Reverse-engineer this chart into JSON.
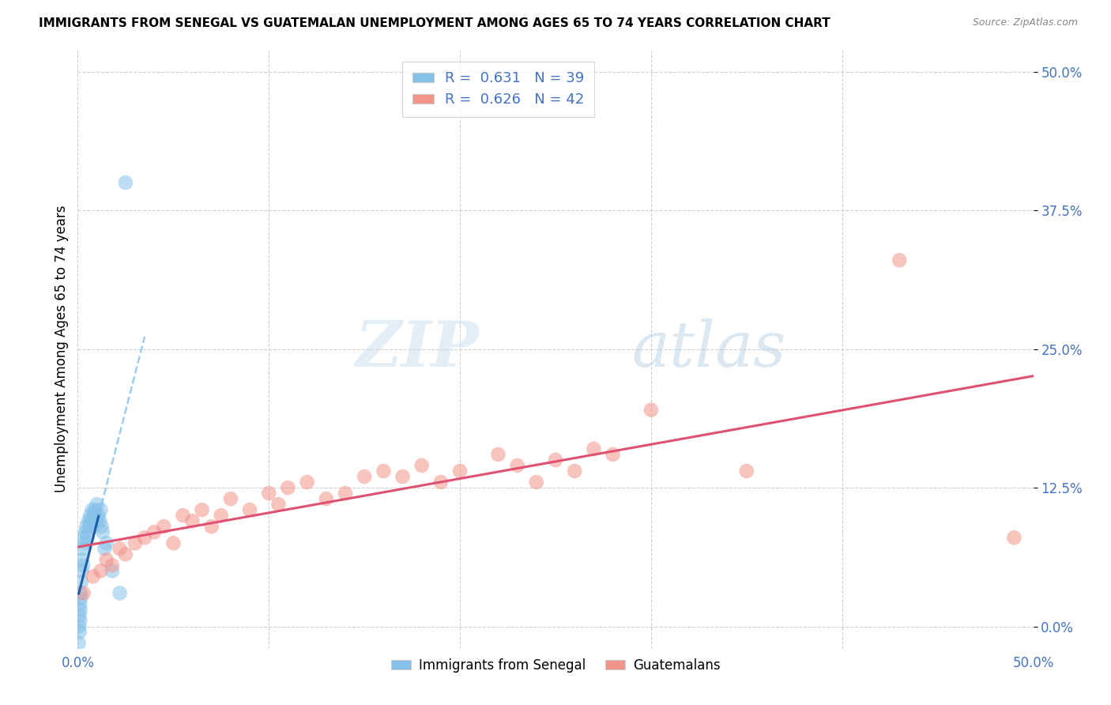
{
  "title": "IMMIGRANTS FROM SENEGAL VS GUATEMALAN UNEMPLOYMENT AMONG AGES 65 TO 74 YEARS CORRELATION CHART",
  "source": "Source: ZipAtlas.com",
  "ylabel": "Unemployment Among Ages 65 to 74 years",
  "xlim": [
    0.0,
    50.0
  ],
  "ylim": [
    -2.0,
    52.0
  ],
  "yticks": [
    0.0,
    12.5,
    25.0,
    37.5,
    50.0
  ],
  "xticks": [
    0.0,
    10.0,
    20.0,
    30.0,
    40.0,
    50.0
  ],
  "legend_r1": "0.631",
  "legend_n1": "39",
  "legend_r2": "0.626",
  "legend_n2": "42",
  "blue_color": "#85c1e9",
  "blue_line_color": "#1a5fa8",
  "blue_dash_color": "#85c1e9",
  "pink_color": "#f1948a",
  "pink_line_color": "#e05070",
  "watermark_zip": "ZIP",
  "watermark_atlas": "atlas",
  "senegal_x": [
    0.05,
    0.08,
    0.1,
    0.1,
    0.12,
    0.12,
    0.13,
    0.15,
    0.15,
    0.18,
    0.2,
    0.22,
    0.25,
    0.28,
    0.3,
    0.35,
    0.4,
    0.45,
    0.5,
    0.55,
    0.6,
    0.65,
    0.7,
    0.75,
    0.8,
    0.85,
    0.9,
    0.95,
    1.0,
    1.1,
    1.15,
    1.2,
    1.25,
    1.3,
    1.4,
    1.5,
    1.8,
    2.2,
    2.5
  ],
  "senegal_y": [
    -1.5,
    0.0,
    1.0,
    -0.5,
    2.0,
    0.5,
    1.5,
    3.0,
    2.5,
    4.0,
    5.0,
    6.0,
    7.0,
    5.5,
    8.0,
    7.5,
    8.5,
    9.0,
    8.0,
    9.5,
    9.0,
    10.0,
    9.5,
    10.5,
    9.0,
    10.0,
    10.5,
    9.5,
    11.0,
    10.0,
    9.5,
    10.5,
    9.0,
    8.5,
    7.0,
    7.5,
    5.0,
    3.0,
    40.0
  ],
  "guatemalan_x": [
    0.3,
    0.8,
    1.2,
    1.5,
    1.8,
    2.2,
    2.5,
    3.0,
    3.5,
    4.0,
    4.5,
    5.0,
    5.5,
    6.0,
    6.5,
    7.0,
    7.5,
    8.0,
    9.0,
    10.0,
    10.5,
    11.0,
    12.0,
    13.0,
    14.0,
    15.0,
    16.0,
    17.0,
    18.0,
    19.0,
    20.0,
    22.0,
    23.0,
    24.0,
    25.0,
    26.0,
    27.0,
    28.0,
    30.0,
    35.0,
    43.0,
    49.0
  ],
  "guatemalan_y": [
    3.0,
    4.5,
    5.0,
    6.0,
    5.5,
    7.0,
    6.5,
    7.5,
    8.0,
    8.5,
    9.0,
    7.5,
    10.0,
    9.5,
    10.5,
    9.0,
    10.0,
    11.5,
    10.5,
    12.0,
    11.0,
    12.5,
    13.0,
    11.5,
    12.0,
    13.5,
    14.0,
    13.5,
    14.5,
    13.0,
    14.0,
    15.5,
    14.5,
    13.0,
    15.0,
    14.0,
    16.0,
    15.5,
    19.5,
    14.0,
    33.0,
    8.0
  ]
}
